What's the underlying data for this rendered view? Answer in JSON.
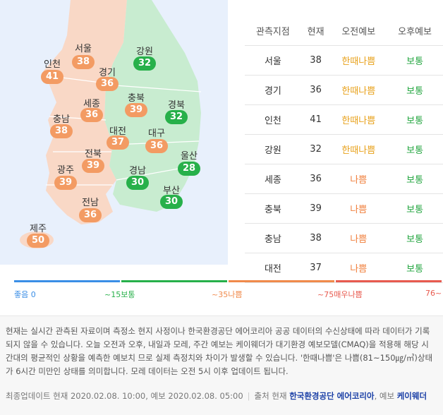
{
  "regions": [
    {
      "name": "서울",
      "value": "38",
      "color": "orange"
    },
    {
      "name": "경기",
      "value": "36",
      "color": "orange"
    },
    {
      "name": "인천",
      "value": "41",
      "color": "orange"
    },
    {
      "name": "강원",
      "value": "32",
      "color": "green"
    },
    {
      "name": "세종",
      "value": "36",
      "color": "orange"
    },
    {
      "name": "충북",
      "value": "39",
      "color": "orange"
    },
    {
      "name": "충남",
      "value": "38",
      "color": "orange"
    },
    {
      "name": "대전",
      "value": "37",
      "color": "orange"
    },
    {
      "name": "경북",
      "value": "32",
      "color": "green"
    },
    {
      "name": "대구",
      "value": "36",
      "color": "orange"
    },
    {
      "name": "전북",
      "value": "39",
      "color": "orange"
    },
    {
      "name": "울산",
      "value": "28",
      "color": "green"
    },
    {
      "name": "광주",
      "value": "39",
      "color": "orange"
    },
    {
      "name": "경남",
      "value": "30",
      "color": "green"
    },
    {
      "name": "부산",
      "value": "30",
      "color": "green"
    },
    {
      "name": "전남",
      "value": "36",
      "color": "orange"
    },
    {
      "name": "제주",
      "value": "50",
      "color": "orange"
    }
  ],
  "table": {
    "headers": [
      "관측지점",
      "현재",
      "오전예보",
      "오후예보"
    ],
    "rows": [
      {
        "site": "서울",
        "current": "38",
        "am": "한때나쁨",
        "am_class": "yellow",
        "pm": "보통",
        "pm_class": "green"
      },
      {
        "site": "경기",
        "current": "36",
        "am": "한때나쁨",
        "am_class": "yellow",
        "pm": "보통",
        "pm_class": "green"
      },
      {
        "site": "인천",
        "current": "41",
        "am": "한때나쁨",
        "am_class": "yellow",
        "pm": "보통",
        "pm_class": "green"
      },
      {
        "site": "강원",
        "current": "32",
        "am": "한때나쁨",
        "am_class": "yellow",
        "pm": "보통",
        "pm_class": "green"
      },
      {
        "site": "세종",
        "current": "36",
        "am": "나쁨",
        "am_class": "orange",
        "pm": "보통",
        "pm_class": "green"
      },
      {
        "site": "충북",
        "current": "39",
        "am": "나쁨",
        "am_class": "orange",
        "pm": "보통",
        "pm_class": "green"
      },
      {
        "site": "충남",
        "current": "38",
        "am": "나쁨",
        "am_class": "orange",
        "pm": "보통",
        "pm_class": "green"
      },
      {
        "site": "대전",
        "current": "37",
        "am": "나쁨",
        "am_class": "orange",
        "pm": "보통",
        "pm_class": "green"
      }
    ]
  },
  "legend": [
    {
      "text": "좋음 0",
      "color": "#3a8ee6"
    },
    {
      "text": "~15보통",
      "color": "#27b04a"
    },
    {
      "text": "~35나쁨",
      "color": "#f08a4b"
    },
    {
      "text": "~75매우나쁨",
      "color": "#e85a4f"
    },
    {
      "text": "76~",
      "color": "#e85a4f"
    }
  ],
  "notice": {
    "text": "현재는 실시간 관측된 자료이며 측정소 현지 사정이나 한국환경공단 에어코리아 공공 데이터의 수신상태에 따라 데이터가 기록되지 않을 수 있습니다. 오늘 오전과 오후, 내일과 모레, 주간 예보는 케이웨더가 대기환경 예보모델(CMAQ)을 적용해 해당 시간대의 평균적인 상황을 예측한 예보치 므로 실제 측정치와 차이가 발생할 수 있습니다. '한때나쁨'은 나쁨(81~150㎍/㎥)상태가 6시간 미만인 상태를 의미합니다. 모레 데이터는 오전 5시 이후 업데이트 됩니다.",
    "update": "최종업데이트 현재 2020.02.08. 10:00, 예보 2020.02.08. 05:00",
    "source_prefix": "출처 현재",
    "source_main": "한국환경공단 에어코리아",
    "source_mid": ", 예보",
    "source_forecast": "케이웨더"
  },
  "colors": {
    "orange": "#f39b63",
    "green": "#27b04a",
    "land_orange": "#f9d8c6",
    "land_green": "#c8ecd0",
    "sea": "#e8f0fc"
  }
}
